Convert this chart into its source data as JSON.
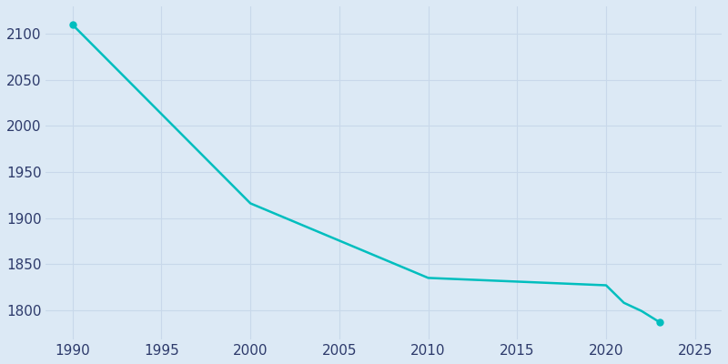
{
  "years": [
    1990,
    2000,
    2010,
    2020,
    2021,
    2022,
    2023
  ],
  "values": [
    2110,
    1916,
    1835,
    1827,
    1808,
    1799,
    1787
  ],
  "line_color": "#00BEBE",
  "background_color": "#dce9f5",
  "figure_background": "#dce9f5",
  "xlim": [
    1988.5,
    2026.5
  ],
  "ylim": [
    1768,
    2130
  ],
  "xticks": [
    1990,
    1995,
    2000,
    2005,
    2010,
    2015,
    2020,
    2025
  ],
  "yticks": [
    1800,
    1850,
    1900,
    1950,
    2000,
    2050,
    2100
  ],
  "grid_color": "#c8d8ea",
  "tick_color": "#2d3a6b",
  "linewidth": 1.8,
  "tick_labelsize": 11
}
